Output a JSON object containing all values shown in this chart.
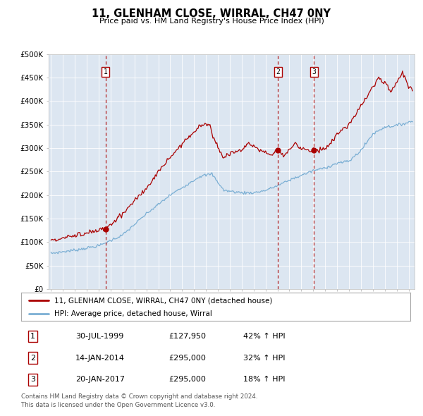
{
  "title": "11, GLENHAM CLOSE, WIRRAL, CH47 0NY",
  "subtitle": "Price paid vs. HM Land Registry's House Price Index (HPI)",
  "red_label": "11, GLENHAM CLOSE, WIRRAL, CH47 0NY (detached house)",
  "blue_label": "HPI: Average price, detached house, Wirral",
  "red_color": "#aa0000",
  "blue_color": "#7bafd4",
  "bg_color": "#dce6f1",
  "purchases": [
    {
      "date_num": 1999.57,
      "price": 127950
    },
    {
      "date_num": 2014.04,
      "price": 295000
    },
    {
      "date_num": 2017.05,
      "price": 295000
    }
  ],
  "vlines": [
    1999.57,
    2014.04,
    2017.05
  ],
  "table_rows": [
    [
      "1",
      "30-JUL-1999",
      "£127,950",
      "42% ↑ HPI"
    ],
    [
      "2",
      "14-JAN-2014",
      "£295,000",
      "32% ↑ HPI"
    ],
    [
      "3",
      "20-JAN-2017",
      "£295,000",
      "18% ↑ HPI"
    ]
  ],
  "footer": "Contains HM Land Registry data © Crown copyright and database right 2024.\nThis data is licensed under the Open Government Licence v3.0.",
  "ylim": [
    0,
    500000
  ],
  "xlim": [
    1994.8,
    2025.5
  ],
  "yticks": [
    0,
    50000,
    100000,
    150000,
    200000,
    250000,
    300000,
    350000,
    400000,
    450000,
    500000
  ],
  "ytick_labels": [
    "£0",
    "£50K",
    "£100K",
    "£150K",
    "£200K",
    "£250K",
    "£300K",
    "£350K",
    "£400K",
    "£450K",
    "£500K"
  ]
}
